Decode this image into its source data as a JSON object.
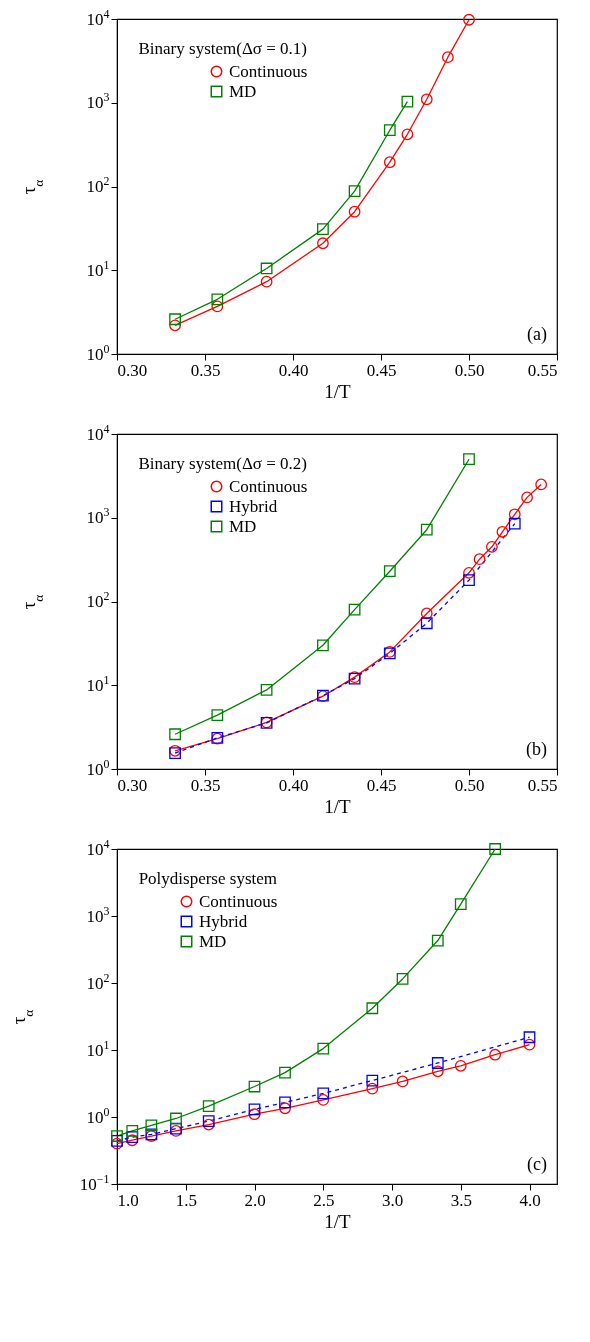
{
  "chart_data": [
    {
      "type": "line",
      "xlabel": "1/T",
      "ylabel": "τ$_{α}$",
      "legend_title": "Binary system(Δσ = 0.1)",
      "legend": "top left",
      "log": "y",
      "grid": false,
      "annotations": [
        "(a)"
      ],
      "xlim": [
        0.3,
        0.55
      ],
      "xticks": [
        {
          "value": 0.3,
          "label": "0.30"
        },
        0.35,
        {
          "value": 0.4,
          "label": "0.40"
        },
        0.45,
        {
          "value": 0.5,
          "label": "0.50"
        },
        0.55
      ],
      "ylim": [
        1,
        10000
      ],
      "yticks": [
        {
          "value": 1,
          "label": "10$^{0}$"
        },
        {
          "value": 10,
          "label": "10$^{1}$"
        },
        {
          "value": 100,
          "label": "10$^{2}$"
        },
        {
          "value": 1000,
          "label": "10$^{3}$"
        },
        {
          "value": 10000,
          "label": "10$^{4}$"
        }
      ],
      "series": [
        {
          "name": "Continuous",
          "color": "#ff0000",
          "marker": "circle",
          "line_style": "solid",
          "x": [
            0.333,
            0.357,
            0.385,
            0.417,
            0.435,
            0.455,
            0.465,
            0.476,
            0.488,
            0.5
          ],
          "values": [
            2.2,
            3.7,
            7.3,
            21,
            50,
            195,
            420,
            1100,
            3500,
            9800
          ]
        },
        {
          "name": "MD",
          "color": "#008000",
          "marker": "square",
          "line_style": "solid",
          "x": [
            0.333,
            0.357,
            0.385,
            0.417,
            0.435,
            0.455,
            0.465
          ],
          "values": [
            2.6,
            4.5,
            10.5,
            31,
            88,
            470,
            1030
          ]
        }
      ]
    },
    {
      "type": "line",
      "xlabel": "1/T",
      "ylabel": "τ$_{α}$",
      "legend_title": "Binary system(Δσ = 0.2)",
      "legend": "top left",
      "log": "y",
      "grid": false,
      "annotations": [
        "(b)"
      ],
      "xlim": [
        0.3,
        0.55
      ],
      "xticks": [
        {
          "value": 0.3,
          "label": "0.30"
        },
        0.35,
        {
          "value": 0.4,
          "label": "0.40"
        },
        0.45,
        {
          "value": 0.5,
          "label": "0.50"
        },
        0.55
      ],
      "ylim": [
        1,
        10000
      ],
      "yticks": [
        {
          "value": 1,
          "label": "10$^{0}$"
        },
        {
          "value": 10,
          "label": "10$^{1}$"
        },
        {
          "value": 100,
          "label": "10$^{2}$"
        },
        {
          "value": 1000,
          "label": "10$^{3}$"
        },
        {
          "value": 10000,
          "label": "10$^{4}$"
        }
      ],
      "series": [
        {
          "name": "Continuous",
          "color": "#ff0000",
          "marker": "circle",
          "line_style": "solid",
          "x": [
            0.333,
            0.357,
            0.385,
            0.417,
            0.435,
            0.455,
            0.476,
            0.5,
            0.506,
            0.513,
            0.519,
            0.526,
            0.533,
            0.541
          ],
          "values": [
            1.65,
            2.3,
            3.6,
            7.4,
            12.5,
            25,
            72,
            220,
            320,
            450,
            680,
            1100,
            1750,
            2500
          ]
        },
        {
          "name": "Hybrid",
          "color": "#0000ff",
          "marker": "square",
          "line_style": "dashed",
          "x": [
            0.333,
            0.357,
            0.385,
            0.417,
            0.435,
            0.455,
            0.476,
            0.5,
            0.526
          ],
          "values": [
            1.55,
            2.35,
            3.55,
            7.5,
            12,
            24,
            55,
            180,
            850
          ]
        },
        {
          "name": "MD",
          "color": "#008000",
          "marker": "square",
          "line_style": "solid",
          "x": [
            0.333,
            0.357,
            0.385,
            0.417,
            0.435,
            0.455,
            0.476,
            0.5
          ],
          "values": [
            2.6,
            4.4,
            8.8,
            30,
            80,
            230,
            720,
            5000
          ]
        }
      ]
    },
    {
      "type": "line",
      "xlabel": "1/T",
      "ylabel": "τ$_{α}$",
      "legend_title": "Polydisperse system",
      "legend": "top left",
      "log": "y",
      "grid": false,
      "annotations": [
        "(c)"
      ],
      "xlim": [
        1.0,
        4.2
      ],
      "xticks": [
        {
          "value": 1,
          "label": "1.0"
        },
        1.5,
        {
          "value": 2,
          "label": "2.0"
        },
        2.5,
        {
          "value": 3,
          "label": "3.0"
        },
        3.5,
        {
          "value": 4,
          "label": "4.0"
        }
      ],
      "ylim": [
        0.1,
        10000
      ],
      "yticks": [
        {
          "value": 0.1,
          "label": "10$^{−1}$"
        },
        {
          "value": 1,
          "label": "10$^{0}$"
        },
        {
          "value": 10,
          "label": "10$^{1}$"
        },
        {
          "value": 100,
          "label": "10$^{2}$"
        },
        {
          "value": 1000,
          "label": "10$^{3}$"
        },
        {
          "value": 10000,
          "label": "10$^{4}$"
        }
      ],
      "series": [
        {
          "name": "Continuous",
          "color": "#ff0000",
          "marker": "circle",
          "line_style": "solid",
          "x": [
            1.0,
            1.111,
            1.25,
            1.429,
            1.667,
            2.0,
            2.222,
            2.5,
            2.857,
            3.077,
            3.333,
            3.5,
            3.75,
            4.0
          ],
          "values": [
            0.4,
            0.45,
            0.52,
            0.62,
            0.77,
            1.1,
            1.35,
            1.8,
            2.65,
            3.4,
            4.8,
            5.8,
            8.5,
            12
          ]
        },
        {
          "name": "Hybrid",
          "color": "#0000ff",
          "marker": "square",
          "line_style": "dashed",
          "x": [
            1.0,
            1.111,
            1.25,
            1.429,
            1.667,
            2.0,
            2.222,
            2.5,
            2.857,
            3.333,
            4.0
          ],
          "values": [
            0.44,
            0.5,
            0.55,
            0.67,
            0.87,
            1.3,
            1.65,
            2.25,
            3.5,
            6.4,
            15.5
          ]
        },
        {
          "name": "MD",
          "color": "#008000",
          "marker": "square",
          "line_style": "solid",
          "x": [
            1.0,
            1.111,
            1.25,
            1.429,
            1.667,
            2.0,
            2.222,
            2.5,
            2.857,
            3.077,
            3.333,
            3.5,
            3.75
          ],
          "values": [
            0.52,
            0.62,
            0.75,
            0.95,
            1.45,
            2.85,
            4.6,
            10.5,
            42,
            115,
            430,
            1500,
            10000
          ]
        }
      ]
    }
  ]
}
